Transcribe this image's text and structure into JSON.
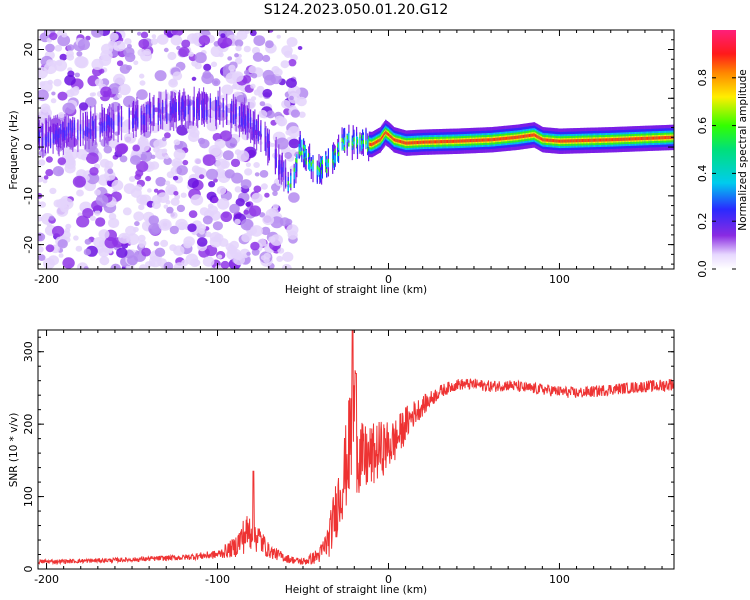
{
  "title": "S124.2023.050.01.20.G12",
  "colors": {
    "snr_line": "#ee3333",
    "frame": "#000000"
  },
  "chart_data": [
    {
      "type": "heatmap",
      "xlabel": "Height of straight line (km)",
      "ylabel": "Frequency (Hz)",
      "xlim": [
        -205,
        167
      ],
      "ylim": [
        -25,
        24
      ],
      "xticks": [
        -200,
        -100,
        0,
        100
      ],
      "yticks": [
        -20,
        -10,
        0,
        10,
        20
      ],
      "colorbar": {
        "label": "Normalized spectral amplitude",
        "range": [
          0,
          1
        ],
        "ticks": [
          "0.0",
          "0.2",
          "0.4",
          "0.6",
          "0.8"
        ],
        "colormap": "rainbow (white, violet, blue, cyan, green, yellow, orange, red, magenta)"
      },
      "ridge": {
        "description": "dominant spectral ridge (Doppler frequency vs height)",
        "points": [
          [
            -200,
            2
          ],
          [
            -150,
            6
          ],
          [
            -120,
            8
          ],
          [
            -100,
            8
          ],
          [
            -85,
            6
          ],
          [
            -75,
            3
          ],
          [
            -65,
            -3
          ],
          [
            -57,
            -8
          ],
          [
            -52,
            0
          ],
          [
            -48,
            -2
          ],
          [
            -43,
            -5
          ],
          [
            -38,
            -4
          ],
          [
            -32,
            -2
          ],
          [
            -27,
            1
          ],
          [
            -20,
            1
          ],
          [
            -10,
            0.5
          ],
          [
            -5,
            1.5
          ],
          [
            -2,
            3
          ],
          [
            0,
            2.5
          ],
          [
            3,
            1.5
          ],
          [
            10,
            0.8
          ],
          [
            20,
            1
          ],
          [
            40,
            1.2
          ],
          [
            60,
            1.5
          ],
          [
            75,
            2
          ],
          [
            85,
            2.5
          ],
          [
            90,
            1.5
          ],
          [
            100,
            1.2
          ],
          [
            130,
            1.5
          ],
          [
            167,
            2
          ]
        ]
      }
    },
    {
      "type": "line",
      "xlabel": "Height of straight line (km)",
      "ylabel": "SNR (10 * v/v)",
      "xlim": [
        -205,
        167
      ],
      "ylim": [
        0,
        330
      ],
      "xticks": [
        -200,
        -100,
        0,
        100
      ],
      "yticks": [
        0,
        100,
        200,
        300
      ],
      "series": [
        {
          "x": [
            -205,
            -180,
            -150,
            -120,
            -100,
            -90,
            -85,
            -80,
            -75,
            -70,
            -60,
            -55,
            -50,
            -45,
            -40,
            -35,
            -30,
            -25,
            -22,
            -20,
            -18,
            -15,
            -10,
            -5,
            0,
            5,
            10,
            15,
            20,
            30,
            40,
            50,
            60,
            70,
            80,
            90,
            100,
            110,
            120,
            130,
            140,
            150,
            160,
            167
          ],
          "values": [
            10,
            11,
            13,
            16,
            20,
            30,
            45,
            55,
            40,
            25,
            15,
            12,
            10,
            14,
            20,
            40,
            90,
            140,
            180,
            220,
            160,
            150,
            155,
            165,
            170,
            180,
            200,
            215,
            225,
            245,
            255,
            255,
            252,
            254,
            250,
            248,
            245,
            243,
            245,
            248,
            250,
            252,
            253,
            256
          ],
          "noise": [
            3,
            3,
            3,
            4,
            6,
            14,
            25,
            30,
            20,
            10,
            6,
            5,
            5,
            8,
            12,
            25,
            45,
            60,
            80,
            100,
            60,
            50,
            45,
            40,
            35,
            30,
            25,
            18,
            14,
            9,
            8,
            8,
            8,
            8,
            8,
            8,
            8,
            8,
            8,
            8,
            8,
            8,
            9,
            9
          ],
          "spikes": [
            [
              -79,
              135
            ],
            [
              -21,
              330
            ],
            [
              -19,
              270
            ]
          ]
        }
      ]
    }
  ]
}
